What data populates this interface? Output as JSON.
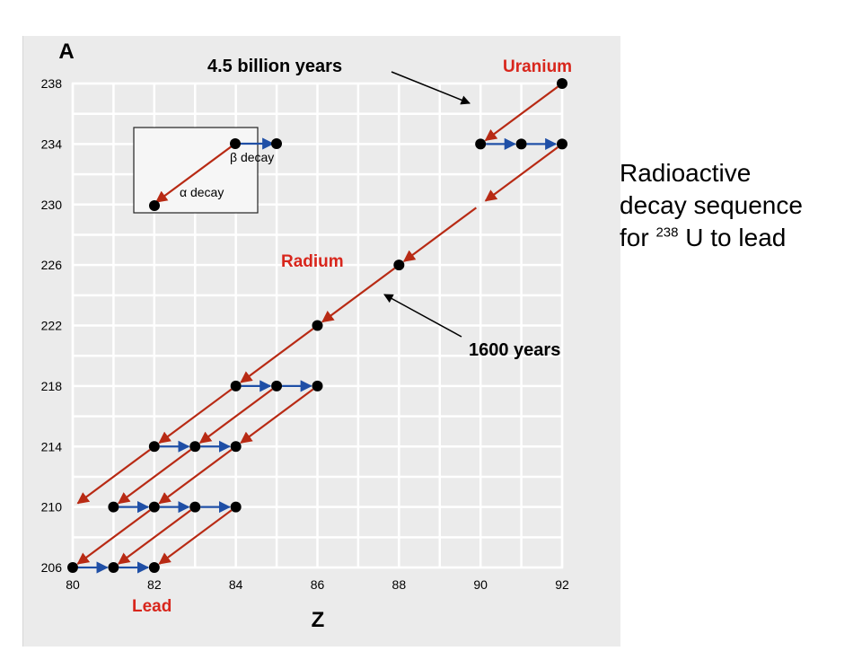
{
  "caption": {
    "line1": "Radioactive",
    "line2": "decay sequence",
    "line3_pre": "for ",
    "line3_sup": "238",
    "line3_post": " U to lead"
  },
  "axes": {
    "y_label": "A",
    "x_label": "Z",
    "x_ticks": [
      "80",
      "82",
      "84",
      "86",
      "88",
      "90",
      "92"
    ],
    "y_ticks": [
      "238",
      "234",
      "230",
      "226",
      "222",
      "218",
      "214",
      "210",
      "206"
    ]
  },
  "annotations": {
    "uranium": "Uranium",
    "radium": "Radium",
    "lead": "Lead",
    "uranium_halflife": "4.5 billion years",
    "radium_halflife": "1600 years"
  },
  "legend": {
    "beta": "β decay",
    "alpha": "α decay"
  },
  "colors": {
    "alpha_arrow": "#b82a14",
    "beta_arrow": "#1f4fa6",
    "label_red": "#d8261c",
    "nuclide": "#000000",
    "grid": "#ffffff"
  },
  "chart_data": {
    "type": "diagram",
    "xlabel": "Z",
    "ylabel": "A",
    "xlim": [
      80,
      92
    ],
    "ylim": [
      206,
      238
    ],
    "nuclides": [
      {
        "z": 92,
        "a": 238
      },
      {
        "z": 90,
        "a": 234
      },
      {
        "z": 91,
        "a": 234
      },
      {
        "z": 92,
        "a": 234
      },
      {
        "z": 88,
        "a": 226
      },
      {
        "z": 86,
        "a": 222
      },
      {
        "z": 84,
        "a": 218
      },
      {
        "z": 85,
        "a": 218
      },
      {
        "z": 86,
        "a": 218
      },
      {
        "z": 82,
        "a": 214
      },
      {
        "z": 83,
        "a": 214
      },
      {
        "z": 84,
        "a": 214
      },
      {
        "z": 81,
        "a": 210
      },
      {
        "z": 82,
        "a": 210
      },
      {
        "z": 83,
        "a": 210
      },
      {
        "z": 84,
        "a": 210
      },
      {
        "z": 80,
        "a": 206
      },
      {
        "z": 81,
        "a": 206
      },
      {
        "z": 82,
        "a": 206
      }
    ],
    "alpha_decays": [
      [
        92,
        238,
        90,
        234
      ],
      [
        92,
        234,
        90,
        230
      ],
      [
        90,
        230,
        88,
        226
      ],
      [
        88,
        226,
        86,
        222
      ],
      [
        86,
        222,
        84,
        218
      ],
      [
        84,
        218,
        82,
        214
      ],
      [
        86,
        218,
        84,
        214
      ],
      [
        85,
        218,
        83,
        214
      ],
      [
        84,
        214,
        82,
        210
      ],
      [
        83,
        214,
        81,
        210
      ],
      [
        82,
        214,
        80,
        210
      ],
      [
        84,
        210,
        82,
        206
      ],
      [
        83,
        210,
        81,
        206
      ],
      [
        82,
        210,
        80,
        206
      ]
    ],
    "beta_decays": [
      [
        90,
        234,
        91,
        234
      ],
      [
        91,
        234,
        92,
        234
      ],
      [
        84,
        218,
        85,
        218
      ],
      [
        85,
        218,
        86,
        218
      ],
      [
        82,
        214,
        83,
        214
      ],
      [
        83,
        214,
        84,
        214
      ],
      [
        81,
        210,
        82,
        210
      ],
      [
        82,
        210,
        83,
        210
      ],
      [
        83,
        210,
        84,
        210
      ],
      [
        80,
        206,
        81,
        206
      ],
      [
        81,
        206,
        82,
        206
      ]
    ]
  }
}
